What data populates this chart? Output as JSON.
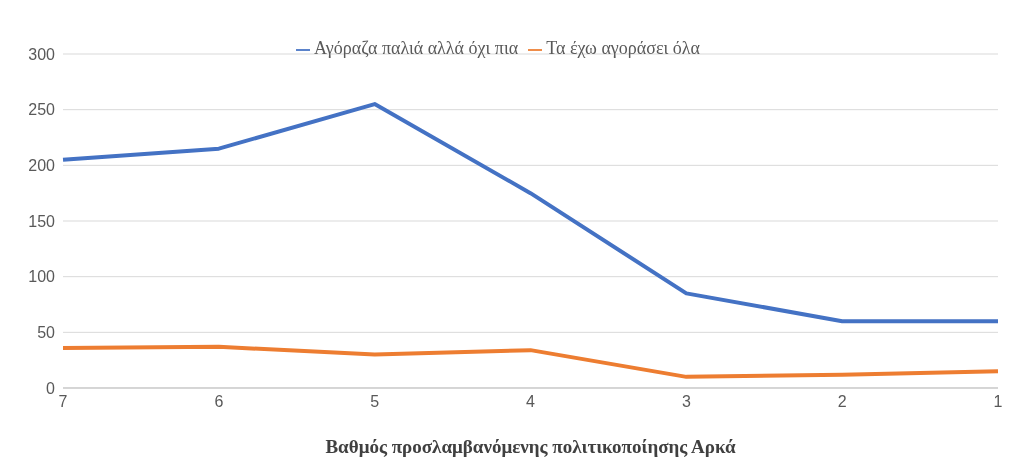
{
  "chart_data": {
    "type": "line",
    "xlabel": "Βαθμός προσλαμβανόμενης πολιτικοποίησης Αρκά",
    "categories": [
      "7",
      "6",
      "5",
      "4",
      "3",
      "2",
      "1"
    ],
    "series": [
      {
        "name": "Αγόραζα παλιά αλλά όχι πια",
        "color": "#4472c4",
        "values": [
          205,
          215,
          255,
          175,
          85,
          60,
          60
        ]
      },
      {
        "name": "Τα έχω αγοράσει όλα",
        "color": "#ed7d31",
        "values": [
          36,
          37,
          30,
          34,
          10,
          12,
          15
        ]
      }
    ],
    "ylim": [
      0,
      300
    ],
    "yticks": [
      0,
      50,
      100,
      150,
      200,
      250,
      300
    ],
    "grid": "y",
    "legend": "top",
    "marker": "none",
    "line_style": "solid"
  }
}
